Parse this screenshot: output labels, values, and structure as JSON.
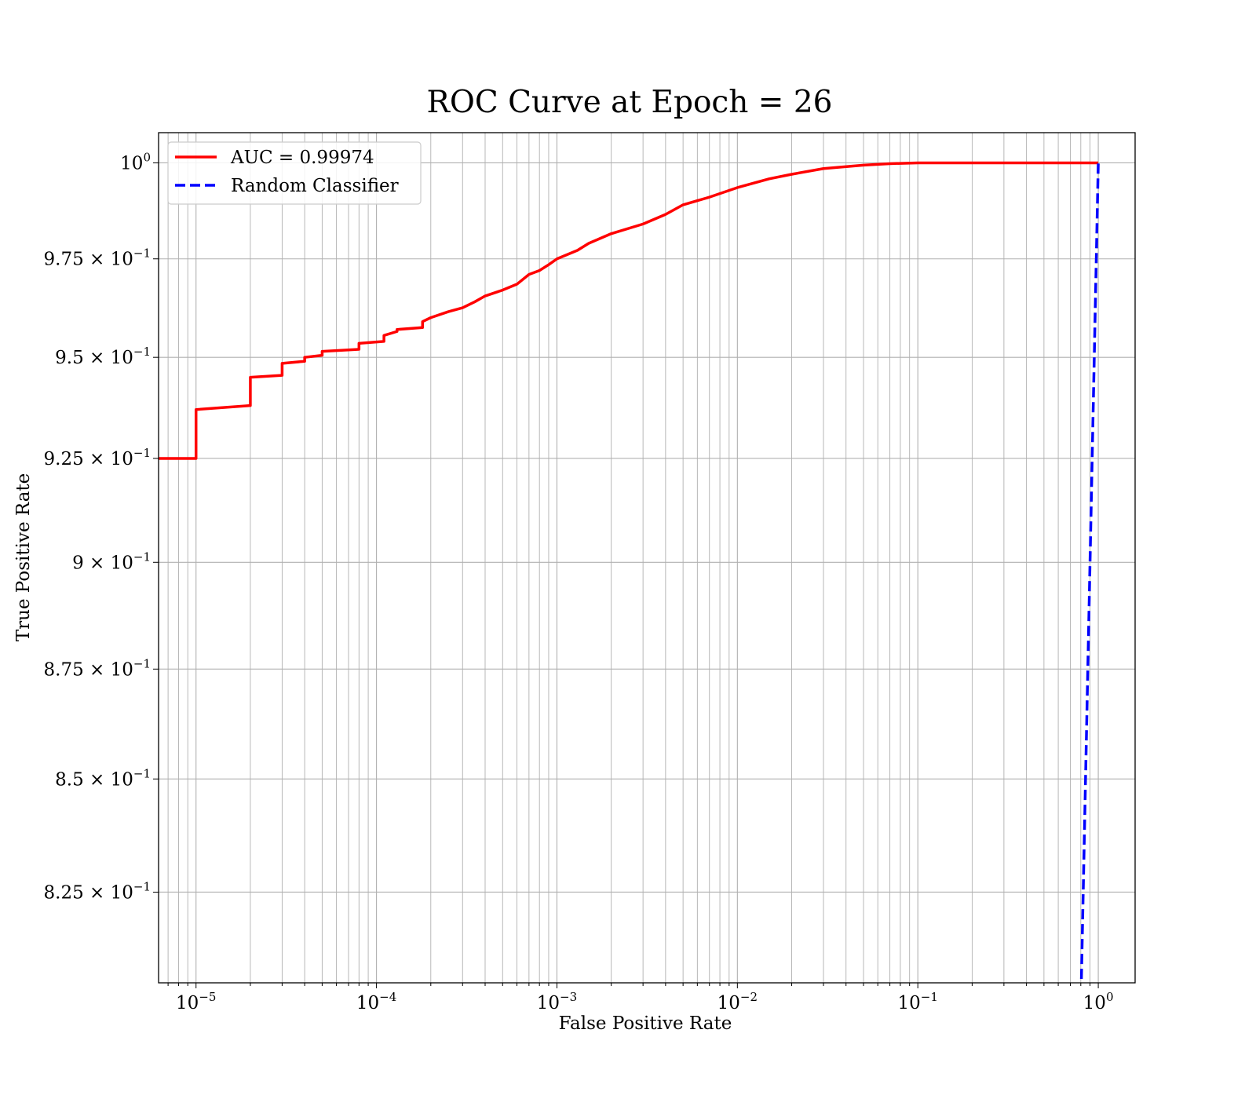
{
  "chart_data": {
    "type": "line",
    "title": "ROC Curve at Epoch = 26",
    "xlabel": "False Positive Rate",
    "ylabel": "True Positive Rate",
    "xscale": "log",
    "yscale": "log",
    "xlim": [
      6.2e-06,
      1.6
    ],
    "ylim": [
      0.8055,
      1.008
    ],
    "grid": true,
    "grid_which": "both",
    "legend_position": "upper-left",
    "x_ticks": [
      {
        "value": 1e-05,
        "base": "10",
        "exp": "−5"
      },
      {
        "value": 0.0001,
        "base": "10",
        "exp": "−4"
      },
      {
        "value": 0.001,
        "base": "10",
        "exp": "−3"
      },
      {
        "value": 0.01,
        "base": "10",
        "exp": "−2"
      },
      {
        "value": 0.1,
        "base": "10",
        "exp": "−1"
      },
      {
        "value": 1,
        "base": "10",
        "exp": "0"
      }
    ],
    "y_ticks": [
      {
        "value": 1.0,
        "base": "10",
        "exp": "0"
      },
      {
        "value": 0.975,
        "base": "9.75 × 10",
        "exp": "−1"
      },
      {
        "value": 0.95,
        "base": "9.5 × 10",
        "exp": "−1"
      },
      {
        "value": 0.925,
        "base": "9.25 × 10",
        "exp": "−1"
      },
      {
        "value": 0.9,
        "base": "9 × 10",
        "exp": "−1"
      },
      {
        "value": 0.875,
        "base": "8.75 × 10",
        "exp": "−1"
      },
      {
        "value": 0.85,
        "base": "8.5 × 10",
        "exp": "−1"
      },
      {
        "value": 0.825,
        "base": "8.25 × 10",
        "exp": "−1"
      }
    ],
    "series": [
      {
        "name": "AUC = 0.99974",
        "color": "#ff0000",
        "style": "solid",
        "x": [
          1e-06,
          1e-05,
          1e-05,
          2e-05,
          2e-05,
          3e-05,
          3e-05,
          4e-05,
          4e-05,
          5e-05,
          5e-05,
          8e-05,
          8e-05,
          0.00011,
          0.00011,
          0.00013,
          0.00013,
          0.00018,
          0.00018,
          0.0002,
          0.00025,
          0.0003,
          0.00035,
          0.0004,
          0.0005,
          0.0006,
          0.0007,
          0.0008,
          0.0009,
          0.001,
          0.0013,
          0.0015,
          0.002,
          0.003,
          0.004,
          0.005,
          0.007,
          0.01,
          0.015,
          0.02,
          0.03,
          0.05,
          0.07,
          0.1,
          0.2,
          0.5,
          1.0
        ],
        "y": [
          0.925,
          0.925,
          0.937,
          0.938,
          0.945,
          0.9455,
          0.9485,
          0.949,
          0.95,
          0.9505,
          0.9515,
          0.952,
          0.9535,
          0.954,
          0.9555,
          0.9565,
          0.957,
          0.9575,
          0.959,
          0.96,
          0.9615,
          0.9625,
          0.964,
          0.9655,
          0.967,
          0.9685,
          0.971,
          0.972,
          0.9735,
          0.975,
          0.9772,
          0.979,
          0.9815,
          0.984,
          0.9865,
          0.989,
          0.991,
          0.9935,
          0.9958,
          0.997,
          0.9985,
          0.9994,
          0.9998,
          1.0,
          1.0,
          1.0,
          1.0
        ]
      },
      {
        "name": "Random Classifier",
        "color": "#0000ff",
        "style": "dashed",
        "x": [
          0.8,
          1.0
        ],
        "y": [
          0.8,
          1.0
        ]
      }
    ]
  }
}
